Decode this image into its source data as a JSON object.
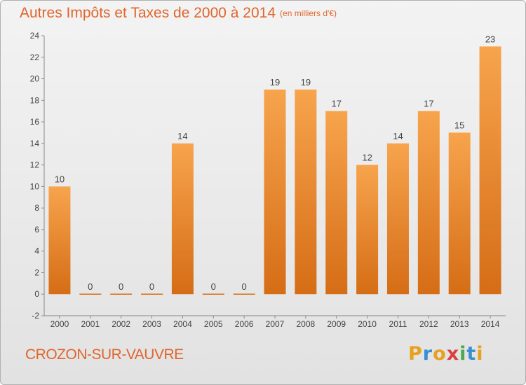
{
  "header": {
    "title": "Autres Impôts et Taxes de 2000 à 2014",
    "unit": "(en milliers d'€)"
  },
  "footer": {
    "commune": "CROZON-SUR-VAUVRE",
    "logo_letters": [
      "P",
      "r",
      "o",
      "x",
      "i",
      "t",
      "i"
    ],
    "logo_colors": [
      "#e8a020",
      "#3a8fd0",
      "#e8a020",
      "#d94040",
      "#4fa84f",
      "#3a8fd0",
      "#e8a020"
    ]
  },
  "colors": {
    "accent": "#e0652c",
    "bar_light": "#f7a44d",
    "bar_dark": "#d56d16"
  },
  "chart_data": {
    "type": "bar",
    "categories": [
      "2000",
      "2001",
      "2002",
      "2003",
      "2004",
      "2005",
      "2006",
      "2007",
      "2008",
      "2009",
      "2010",
      "2011",
      "2012",
      "2013",
      "2014"
    ],
    "values": [
      10,
      0,
      0,
      0,
      14,
      0,
      0,
      19,
      19,
      17,
      12,
      14,
      17,
      15,
      23
    ],
    "data_labels": [
      "10",
      "0",
      "0",
      "0",
      "14",
      "0",
      "0",
      "19",
      "19",
      "17",
      "12",
      "14",
      "17",
      "15",
      "23"
    ],
    "yticks": [
      -2,
      0,
      2,
      4,
      6,
      8,
      10,
      12,
      14,
      16,
      18,
      20,
      22,
      24
    ],
    "ylim": [
      -2,
      24
    ],
    "grid": false
  }
}
